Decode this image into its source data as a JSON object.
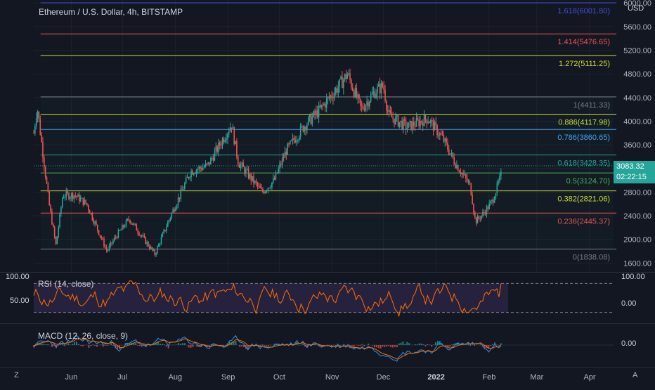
{
  "symbol_title": "Ethereum / U.S. Dollar, 4h, BITSTAMP",
  "currency": "USD",
  "last_price": "3083.32",
  "countdown": "02:22:15",
  "colors": {
    "background": "#131722",
    "grid": "#1e222d",
    "up": "#26a69a",
    "down": "#ef5350",
    "rsi_line": "#ff6d00",
    "macd_line": "#2196f3",
    "signal_line": "#ff6d00"
  },
  "time_axis": {
    "labels": [
      "Jun",
      "Jul",
      "Aug",
      "Sep",
      "Oct",
      "Nov",
      "Dec",
      "2022",
      "Feb",
      "Mar",
      "Apr"
    ],
    "left_corner": "Z",
    "right_corner": "A"
  },
  "chart_data": [
    {
      "type": "candlestick",
      "title": "Ethereum / U.S. Dollar, 4h, BITSTAMP",
      "x_range": [
        "2021-05-10",
        "2022-04-15"
      ],
      "y_range": [
        1450,
        6050
      ],
      "y_ticks": [
        "6000.00",
        "5600.00",
        "5200.00",
        "4800.00",
        "4400.00",
        "4000.00",
        "3600.00",
        "3200.00",
        "2800.00",
        "2400.00",
        "2000.00",
        "1600.00"
      ],
      "series": [
        {
          "x": [
            "2021-05-10",
            "2021-05-12",
            "2021-05-19",
            "2021-05-23",
            "2021-05-27",
            "2021-06-03",
            "2021-06-10",
            "2021-06-22",
            "2021-06-26",
            "2021-07-05",
            "2021-07-10",
            "2021-07-20",
            "2021-07-30",
            "2021-08-10",
            "2021-08-20",
            "2021-09-03",
            "2021-09-07",
            "2021-09-21",
            "2021-09-28",
            "2021-10-05",
            "2021-10-15",
            "2021-10-25",
            "2021-11-05",
            "2021-11-10",
            "2021-11-18",
            "2021-11-26",
            "2021-12-01",
            "2021-12-04",
            "2021-12-15",
            "2021-12-27",
            "2022-01-05",
            "2022-01-12",
            "2022-01-21",
            "2022-01-24",
            "2022-01-29",
            "2022-02-03",
            "2022-02-08"
          ],
          "y": [
            3800,
            4250,
            2600,
            1900,
            2750,
            2750,
            2600,
            1800,
            2000,
            2350,
            2150,
            1750,
            2450,
            3150,
            3250,
            3950,
            3300,
            2800,
            3000,
            3500,
            3900,
            4200,
            4600,
            4800,
            4200,
            4500,
            4600,
            4100,
            3900,
            4050,
            3700,
            3300,
            2900,
            2300,
            2450,
            2650,
            3083
          ]
        }
      ],
      "fib_levels": [
        {
          "label": "1.618(6001.80)",
          "value": 6001.8,
          "color": "#3d4fd6"
        },
        {
          "label": "1.414(5476.65)",
          "value": 5476.65,
          "color": "#ef5350"
        },
        {
          "label": "1.272(5111.25)",
          "value": 5111.25,
          "color": "#cddc39"
        },
        {
          "label": "1(4411.33)",
          "value": 4411.33,
          "color": "#787b86"
        },
        {
          "label": "0.886(4117.98)",
          "value": 4117.98,
          "color": "#cddc39"
        },
        {
          "label": "0.786(3860.65)",
          "value": 3860.65,
          "color": "#42a5f5"
        },
        {
          "label": "0.618(3428.35)",
          "value": 3428.35,
          "color": "#26a69a"
        },
        {
          "label": "0.5(3124.70)",
          "value": 3124.7,
          "color": "#4caf50"
        },
        {
          "label": "0.382(2821.06)",
          "value": 2821.06,
          "color": "#cddc39"
        },
        {
          "label": "0.236(2445.37)",
          "value": 2445.37,
          "color": "#ef5350"
        },
        {
          "label": "0(1838.08)",
          "value": 1838.08,
          "color": "#787b86"
        }
      ]
    },
    {
      "type": "line",
      "title": "RSI (14, close)",
      "left_scale_label": "100.00",
      "left_mid_label": "50.00",
      "right_top_label": "100.00",
      "right_mid_label": "0.00",
      "y_range": [
        15,
        85
      ],
      "bands": [
        70,
        30
      ],
      "series": [
        {
          "x_range": [
            "2021-05-10",
            "2022-02-08"
          ],
          "samples": 230,
          "min": 18,
          "max": 80,
          "last": 70
        }
      ]
    },
    {
      "type": "line",
      "title": "MACD (12, 26, close, 9)",
      "right_mid_label": "0.00",
      "series": [
        {
          "role": "macd",
          "x_range": [
            "2021-05-10",
            "2022-02-08"
          ],
          "samples": 230
        },
        {
          "role": "signal",
          "x_range": [
            "2021-05-10",
            "2022-02-08"
          ],
          "samples": 230
        }
      ]
    }
  ]
}
